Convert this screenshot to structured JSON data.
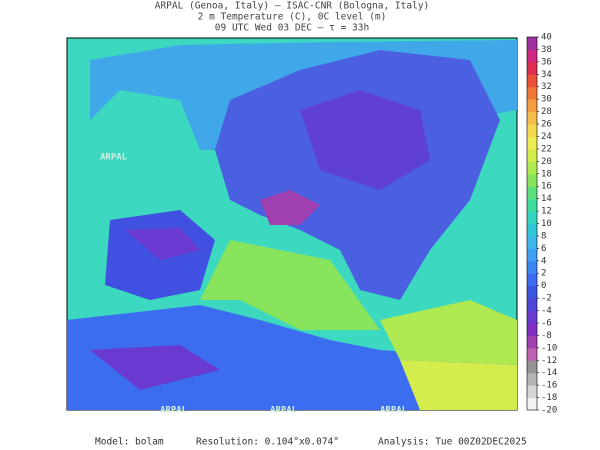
{
  "header": {
    "lines": [
      "ARPAL (Genoa, Italy)  —  ISAC-CNR (Bologna, Italy)",
      "2 m Temperature (C), 0C level (m)",
      "09 UTC Wed 03 DEC  —  τ = 33h"
    ]
  },
  "map": {
    "watermark": "ARPAL"
  },
  "colorbar": {
    "range": [
      -20,
      40
    ],
    "ticks": [
      -20,
      -18,
      -16,
      -14,
      -12,
      -10,
      -8,
      -6,
      -4,
      -2,
      0,
      2,
      4,
      6,
      8,
      10,
      12,
      14,
      16,
      18,
      20,
      22,
      24,
      26,
      28,
      30,
      32,
      34,
      36,
      38,
      40
    ],
    "colors": [
      "#f2f2f2",
      "#d4d4d4",
      "#b4b4b4",
      "#949494",
      "#c060b0",
      "#a040b0",
      "#8030c0",
      "#6a3ad0",
      "#5046d8",
      "#3c56e0",
      "#3c6cf0",
      "#3c86f4",
      "#40a0f4",
      "#3cb8ec",
      "#30c8d8",
      "#34d4c0",
      "#40dca0",
      "#5ce07c",
      "#88e45c",
      "#b0e850",
      "#d4ec4c",
      "#ecec50",
      "#f4d850",
      "#f4bc48",
      "#f49c40",
      "#f07838",
      "#ec5038",
      "#e03050",
      "#d02880",
      "#a030a0"
    ]
  },
  "footer": {
    "model": "Model: bolam",
    "resolution": "Resolution: 0.104°x0.074°",
    "analysis": "Analysis: Tue 00Z02DEC2025"
  }
}
